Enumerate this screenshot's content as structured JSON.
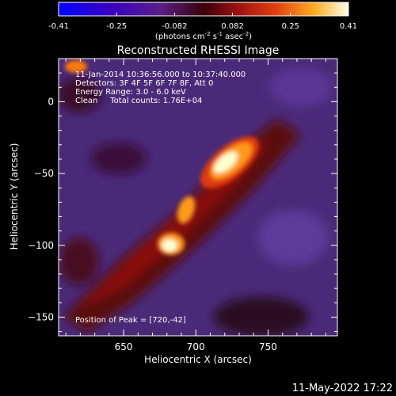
{
  "colorbar": {
    "ticks": [
      "-0.41",
      "-0.25",
      "-0.082",
      "0.082",
      "0.25",
      "0.41"
    ],
    "units_prefix": "(photons cm",
    "units_exp1": "-2",
    "units_mid": " s",
    "units_exp2": "-1",
    "units_mid2": " asec",
    "units_exp3": "-2",
    "units_suffix": ")"
  },
  "title": "Reconstructed RHESSI Image",
  "annotation": {
    "line1": "11-Jan-2014 10:36:56.000 to 10:37:40.000",
    "line2": "Detectors: 3F 4F 5F 6F 7F 8F, Att 0",
    "line3": "Energy Range: 3.0 - 6.0 keV",
    "line4": "Clean     Total counts: 1.76E+04",
    "peak": "Position of Peak = [720,-42]"
  },
  "footer_date": "11-May-2022 17:22",
  "chart_data": {
    "type": "heatmap",
    "title": "Reconstructed RHESSI Image",
    "xlabel": "Heliocentric X (arcsec)",
    "ylabel": "Heliocentric Y (arcsec)",
    "xlim": [
      605,
      798
    ],
    "ylim": [
      -163,
      30
    ],
    "x_ticks": [
      650,
      700,
      750
    ],
    "y_ticks": [
      0,
      -50,
      -100,
      -150
    ],
    "x_tick_labels": [
      "650",
      "700",
      "750"
    ],
    "y_tick_labels": [
      "0",
      "−50",
      "−100",
      "−150"
    ],
    "colorbar_range": [
      -0.41,
      0.41
    ],
    "colormap": "blue-purple-red-orange-yellow-white",
    "peak_position": [
      720,
      -42
    ],
    "sources": [
      {
        "x": 720,
        "y": -42,
        "value": 0.41
      },
      {
        "x": 683,
        "y": -98,
        "value": 0.35
      },
      {
        "x": 695,
        "y": -78,
        "value": 0.22
      }
    ]
  }
}
